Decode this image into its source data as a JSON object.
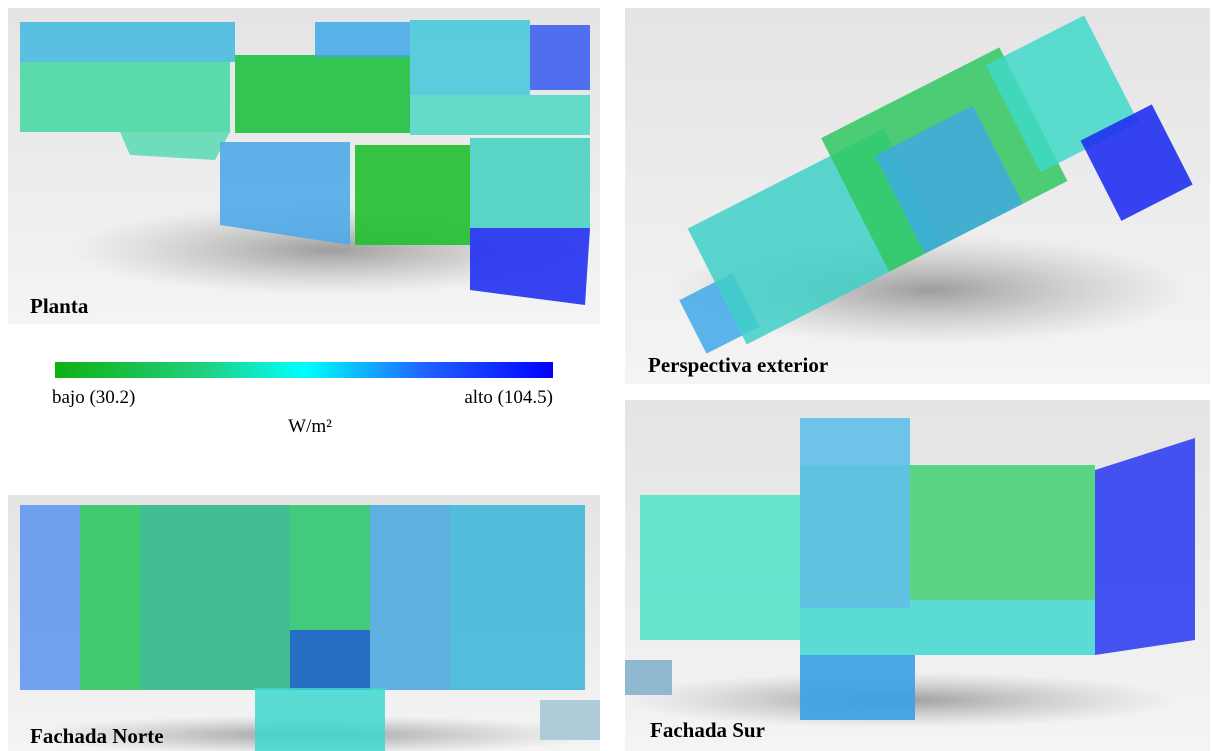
{
  "panels": [
    {
      "label": "Planta"
    },
    {
      "label": "Perspectiva exterior"
    },
    {
      "label": "Fachada Norte"
    },
    {
      "label": "Fachada Sur"
    }
  ],
  "legend": {
    "low_label": "bajo (30.2)",
    "high_label": "alto (104.5)",
    "unit": "W/m²"
  }
}
